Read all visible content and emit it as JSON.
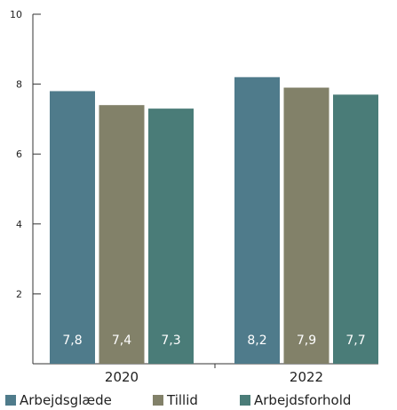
{
  "chart_data": {
    "type": "bar",
    "categories": [
      "2020",
      "2022"
    ],
    "series": [
      {
        "name": "Arbejdsglæde",
        "values": [
          7.8,
          8.2
        ],
        "labels": [
          "7,8",
          "8,2"
        ],
        "color": "#4f7b8b"
      },
      {
        "name": "Tillid",
        "values": [
          7.4,
          7.9
        ],
        "labels": [
          "7,4",
          "7,9"
        ],
        "color": "#828169"
      },
      {
        "name": "Arbejdsforhold",
        "values": [
          7.3,
          7.7
        ],
        "labels": [
          "7,3",
          "7,7"
        ],
        "color": "#4a7c78"
      }
    ],
    "yticks": [
      "2",
      "4",
      "6",
      "8",
      "10"
    ],
    "ylim": [
      0,
      10
    ],
    "xlabel": "",
    "ylabel": "",
    "title": "",
    "legend_position": "bottom",
    "grid": false
  }
}
